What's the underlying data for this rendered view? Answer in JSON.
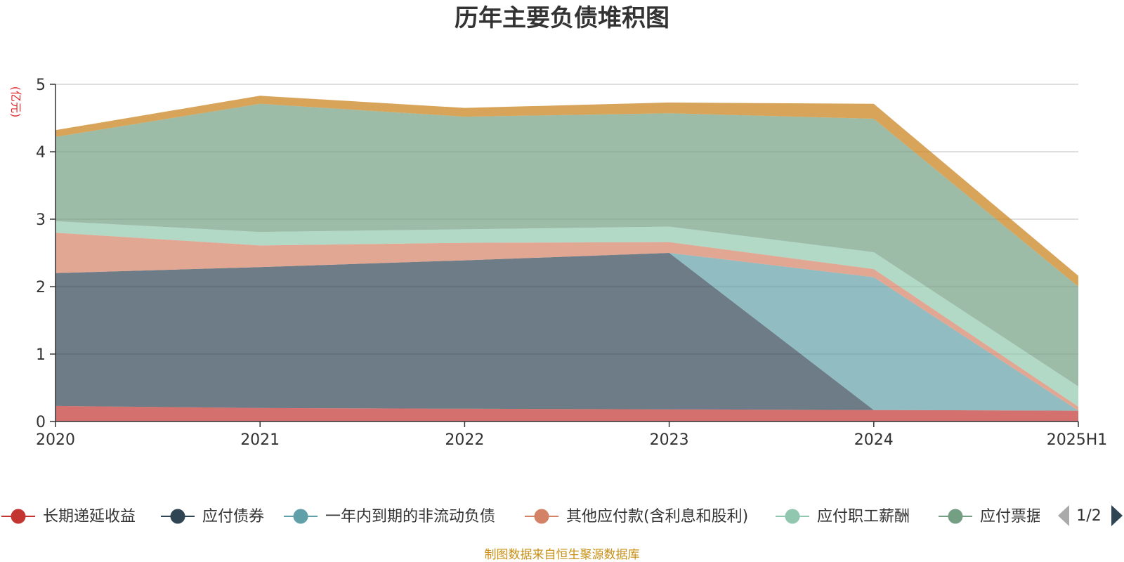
{
  "chart_data": {
    "type": "area",
    "stacked": true,
    "title": "历年主要负债堆积图",
    "y_unit_label": "(亿元)",
    "categories": [
      "2020",
      "2021",
      "2022",
      "2023",
      "2024",
      "2025H1"
    ],
    "ylim": [
      0,
      5
    ],
    "yticks": [
      0,
      1,
      2,
      3,
      4,
      5
    ],
    "grid": true,
    "legend_position": "bottom",
    "series": [
      {
        "name": "长期递延收益",
        "color": "#c23531",
        "values": [
          0.23,
          0.2,
          0.19,
          0.18,
          0.17,
          0.16
        ]
      },
      {
        "name": "应付债券",
        "color": "#2f4554",
        "values": [
          1.97,
          2.09,
          2.2,
          2.32,
          0.0,
          0.0
        ]
      },
      {
        "name": "一年内到期的非流动负债",
        "color": "#61a0a8",
        "values": [
          0.0,
          0.0,
          0.0,
          0.0,
          1.97,
          0.0
        ]
      },
      {
        "name": "其他应付款(含利息和股利)",
        "color": "#d48265",
        "values": [
          0.6,
          0.32,
          0.26,
          0.16,
          0.12,
          0.06
        ]
      },
      {
        "name": "应付职工薪酬",
        "color": "#91c7ae",
        "values": [
          0.17,
          0.2,
          0.2,
          0.23,
          0.25,
          0.3
        ]
      },
      {
        "name": "应付票据",
        "color": "#749f83",
        "values": [
          1.25,
          1.9,
          1.67,
          1.68,
          1.98,
          1.48
        ]
      },
      {
        "name": "",
        "color": "#ca8622",
        "values": [
          0.1,
          0.12,
          0.13,
          0.16,
          0.22,
          0.16
        ]
      }
    ],
    "legend_page": "1/2",
    "source_note": "制图数据来自恒生聚源数据库"
  },
  "colors": {
    "axis": "#333333",
    "grid": "#cccccc",
    "unit": "#e0282d",
    "source": "#c89016",
    "pager_inactive": "#aaaaaa",
    "pager_active": "#2f4554"
  }
}
